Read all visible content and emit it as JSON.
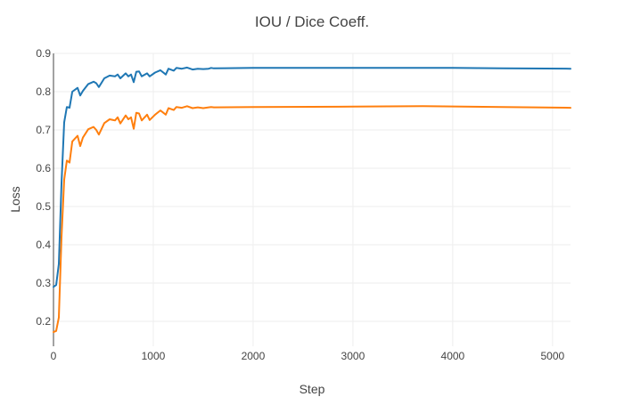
{
  "chart_data": {
    "type": "line",
    "title": "IOU / Dice Coeff.",
    "xlabel": "Step",
    "ylabel": "Loss",
    "xlim": [
      0,
      5180
    ],
    "ylim": [
      0.135,
      0.9
    ],
    "x_ticks": [
      0,
      1000,
      2000,
      3000,
      4000,
      5000
    ],
    "y_ticks": [
      0.2,
      0.3,
      0.4,
      0.5,
      0.6,
      0.7,
      0.8,
      0.9
    ],
    "grid": true,
    "legend": "none",
    "series": [
      {
        "color": "#1f77b4",
        "points": [
          [
            0,
            0.29
          ],
          [
            27,
            0.295
          ],
          [
            54,
            0.35
          ],
          [
            80,
            0.56
          ],
          [
            107,
            0.72
          ],
          [
            134,
            0.76
          ],
          [
            161,
            0.758
          ],
          [
            188,
            0.8
          ],
          [
            241,
            0.81
          ],
          [
            268,
            0.79
          ],
          [
            295,
            0.802
          ],
          [
            348,
            0.82
          ],
          [
            402,
            0.826
          ],
          [
            429,
            0.822
          ],
          [
            455,
            0.812
          ],
          [
            509,
            0.835
          ],
          [
            563,
            0.842
          ],
          [
            616,
            0.84
          ],
          [
            643,
            0.845
          ],
          [
            670,
            0.835
          ],
          [
            723,
            0.848
          ],
          [
            750,
            0.84
          ],
          [
            777,
            0.845
          ],
          [
            804,
            0.825
          ],
          [
            830,
            0.852
          ],
          [
            857,
            0.853
          ],
          [
            884,
            0.84
          ],
          [
            938,
            0.848
          ],
          [
            964,
            0.84
          ],
          [
            1018,
            0.85
          ],
          [
            1071,
            0.856
          ],
          [
            1125,
            0.845
          ],
          [
            1152,
            0.86
          ],
          [
            1205,
            0.855
          ],
          [
            1232,
            0.862
          ],
          [
            1286,
            0.86
          ],
          [
            1339,
            0.863
          ],
          [
            1393,
            0.858
          ],
          [
            1446,
            0.86
          ],
          [
            1500,
            0.859
          ],
          [
            1554,
            0.86
          ],
          [
            1580,
            0.862
          ],
          [
            1607,
            0.861
          ],
          [
            2000,
            0.862
          ],
          [
            3000,
            0.862
          ],
          [
            4000,
            0.862
          ],
          [
            4500,
            0.861
          ],
          [
            5180,
            0.86
          ]
        ]
      },
      {
        "color": "#ff7f0e",
        "points": [
          [
            0,
            0.172
          ],
          [
            27,
            0.175
          ],
          [
            54,
            0.21
          ],
          [
            80,
            0.42
          ],
          [
            107,
            0.57
          ],
          [
            134,
            0.62
          ],
          [
            161,
            0.615
          ],
          [
            188,
            0.67
          ],
          [
            241,
            0.685
          ],
          [
            268,
            0.658
          ],
          [
            295,
            0.68
          ],
          [
            348,
            0.702
          ],
          [
            402,
            0.708
          ],
          [
            429,
            0.7
          ],
          [
            455,
            0.688
          ],
          [
            509,
            0.718
          ],
          [
            563,
            0.728
          ],
          [
            616,
            0.725
          ],
          [
            643,
            0.733
          ],
          [
            670,
            0.717
          ],
          [
            723,
            0.738
          ],
          [
            750,
            0.728
          ],
          [
            777,
            0.733
          ],
          [
            804,
            0.703
          ],
          [
            830,
            0.745
          ],
          [
            857,
            0.743
          ],
          [
            884,
            0.725
          ],
          [
            938,
            0.74
          ],
          [
            964,
            0.726
          ],
          [
            1018,
            0.74
          ],
          [
            1071,
            0.751
          ],
          [
            1125,
            0.74
          ],
          [
            1152,
            0.757
          ],
          [
            1205,
            0.752
          ],
          [
            1232,
            0.76
          ],
          [
            1286,
            0.758
          ],
          [
            1339,
            0.762
          ],
          [
            1393,
            0.757
          ],
          [
            1446,
            0.759
          ],
          [
            1500,
            0.757
          ],
          [
            1554,
            0.759
          ],
          [
            1580,
            0.76
          ],
          [
            1607,
            0.759
          ],
          [
            2000,
            0.76
          ],
          [
            3000,
            0.761
          ],
          [
            3700,
            0.762
          ],
          [
            4500,
            0.76
          ],
          [
            5180,
            0.758
          ]
        ]
      }
    ]
  }
}
